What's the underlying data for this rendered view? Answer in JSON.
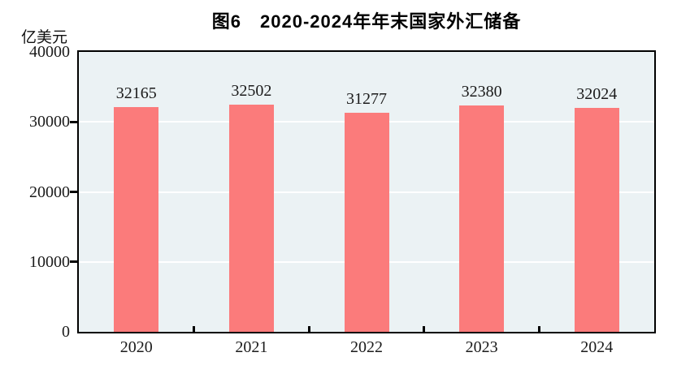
{
  "figure": {
    "title": "图6　2020-2024年年末国家外汇储备",
    "unit_label": "亿美元"
  },
  "chart_data": {
    "type": "bar",
    "title": "图6　2020-2024年年末国家外汇储备",
    "categories": [
      "2020",
      "2021",
      "2022",
      "2023",
      "2024"
    ],
    "values": [
      32165,
      32502,
      31277,
      32380,
      32024
    ],
    "data_labels": [
      "32165",
      "32502",
      "31277",
      "32380",
      "32024"
    ],
    "xlabel": "",
    "ylabel": "亿美元",
    "ylim": [
      0,
      40000
    ],
    "yticks": [
      0,
      10000,
      20000,
      30000,
      40000
    ],
    "ytick_labels": [
      "0",
      "10000",
      "20000",
      "30000",
      "40000"
    ],
    "grid": "horizontal gridlines at 10000/20000/30000, white",
    "legend": "none",
    "show_data_labels": true,
    "colors": {
      "bar": "#fb7b7b",
      "plot_background": "#ebf2f4",
      "gridline": "#ffffff",
      "axis_frame": "#000000",
      "text": "#1b1b1b"
    }
  }
}
